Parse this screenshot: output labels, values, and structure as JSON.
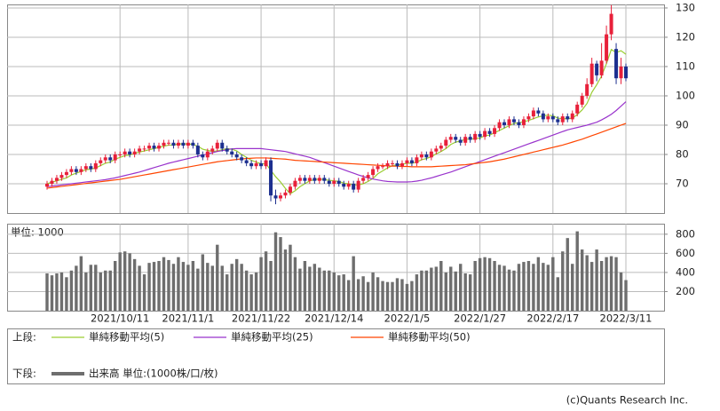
{
  "chart_data": [
    {
      "type": "candlestick",
      "up_color": "#e8203a",
      "down_color": "#1c2f8f",
      "legend_title": "上段:",
      "ylim": [
        60,
        131.2
      ],
      "yticks": [
        70,
        80,
        90,
        100,
        110,
        120,
        130
      ],
      "grid": true,
      "ohlc": [
        [
          69,
          71,
          68,
          70
        ],
        [
          70,
          72,
          69,
          71
        ],
        [
          71,
          73,
          70,
          72
        ],
        [
          72,
          74,
          71,
          73
        ],
        [
          73,
          75,
          72,
          74
        ],
        [
          74,
          76,
          73,
          75
        ],
        [
          75,
          76,
          73,
          74
        ],
        [
          74,
          76,
          73,
          75
        ],
        [
          75,
          77,
          74,
          76
        ],
        [
          76,
          77,
          74,
          75
        ],
        [
          75,
          78,
          74,
          77
        ],
        [
          77,
          79,
          76,
          78
        ],
        [
          78,
          80,
          77,
          79
        ],
        [
          79,
          80,
          77,
          78
        ],
        [
          78,
          81,
          77,
          80
        ],
        [
          80,
          81,
          79,
          80
        ],
        [
          80,
          82,
          79,
          81
        ],
        [
          81,
          82,
          79,
          80
        ],
        [
          80,
          82,
          79,
          81
        ],
        [
          81,
          83,
          80,
          82
        ],
        [
          82,
          83,
          81,
          82
        ],
        [
          82,
          84,
          81,
          83
        ],
        [
          83,
          84,
          81,
          82
        ],
        [
          82,
          84,
          81,
          83
        ],
        [
          83,
          85,
          82,
          84
        ],
        [
          84,
          85,
          83,
          84
        ],
        [
          84,
          85,
          82,
          83
        ],
        [
          83,
          85,
          82,
          84
        ],
        [
          84,
          85,
          82,
          83
        ],
        [
          83,
          85,
          82,
          84
        ],
        [
          84,
          85,
          82,
          83
        ],
        [
          83,
          84,
          79,
          80
        ],
        [
          80,
          81,
          78,
          79
        ],
        [
          79,
          82,
          78,
          81
        ],
        [
          81,
          83,
          80,
          82
        ],
        [
          82,
          85,
          81,
          84
        ],
        [
          84,
          85,
          81,
          82
        ],
        [
          82,
          83,
          80,
          81
        ],
        [
          81,
          82,
          79,
          80
        ],
        [
          80,
          81,
          78,
          79
        ],
        [
          79,
          80,
          77,
          78
        ],
        [
          78,
          79,
          76,
          77
        ],
        [
          77,
          78,
          75,
          76
        ],
        [
          76,
          78,
          75,
          77
        ],
        [
          77,
          78,
          75,
          76
        ],
        [
          76,
          79,
          75,
          78
        ],
        [
          78,
          79,
          64,
          66
        ],
        [
          66,
          68,
          63,
          65
        ],
        [
          65,
          67,
          64,
          66
        ],
        [
          66,
          68,
          65,
          67
        ],
        [
          67,
          70,
          66,
          69
        ],
        [
          69,
          72,
          68,
          71
        ],
        [
          71,
          73,
          70,
          72
        ],
        [
          72,
          73,
          70,
          71
        ],
        [
          71,
          73,
          70,
          72
        ],
        [
          72,
          73,
          70,
          71
        ],
        [
          71,
          73,
          70,
          72
        ],
        [
          72,
          73,
          70,
          71
        ],
        [
          71,
          72,
          69,
          70
        ],
        [
          70,
          72,
          69,
          71
        ],
        [
          71,
          72,
          69,
          70
        ],
        [
          70,
          71,
          68,
          69
        ],
        [
          69,
          71,
          68,
          70
        ],
        [
          70,
          71,
          67,
          68
        ],
        [
          68,
          72,
          67,
          71
        ],
        [
          71,
          73,
          70,
          72
        ],
        [
          72,
          74,
          71,
          73
        ],
        [
          73,
          76,
          72,
          75
        ],
        [
          75,
          77,
          74,
          76
        ],
        [
          76,
          77,
          75,
          76
        ],
        [
          76,
          78,
          75,
          77
        ],
        [
          77,
          78,
          76,
          77
        ],
        [
          77,
          78,
          75,
          76
        ],
        [
          76,
          78,
          75,
          77
        ],
        [
          77,
          79,
          76,
          78
        ],
        [
          78,
          79,
          76,
          77
        ],
        [
          77,
          80,
          76,
          79
        ],
        [
          79,
          81,
          78,
          80
        ],
        [
          80,
          81,
          78,
          79
        ],
        [
          79,
          82,
          78,
          81
        ],
        [
          81,
          83,
          80,
          82
        ],
        [
          82,
          84,
          81,
          83
        ],
        [
          83,
          86,
          82,
          85
        ],
        [
          85,
          87,
          84,
          86
        ],
        [
          86,
          87,
          84,
          85
        ],
        [
          85,
          86,
          83,
          84
        ],
        [
          84,
          87,
          83,
          86
        ],
        [
          86,
          87,
          84,
          85
        ],
        [
          85,
          88,
          84,
          87
        ],
        [
          87,
          88,
          85,
          86
        ],
        [
          86,
          89,
          85,
          88
        ],
        [
          88,
          89,
          86,
          87
        ],
        [
          87,
          90,
          86,
          89
        ],
        [
          89,
          92,
          88,
          91
        ],
        [
          91,
          92,
          89,
          90
        ],
        [
          90,
          93,
          89,
          92
        ],
        [
          92,
          93,
          90,
          91
        ],
        [
          91,
          92,
          89,
          90
        ],
        [
          90,
          93,
          89,
          92
        ],
        [
          92,
          94,
          91,
          93
        ],
        [
          93,
          96,
          92,
          95
        ],
        [
          95,
          96,
          93,
          94
        ],
        [
          94,
          95,
          91,
          92
        ],
        [
          92,
          94,
          91,
          93
        ],
        [
          93,
          94,
          91,
          92
        ],
        [
          92,
          93,
          90,
          91
        ],
        [
          91,
          94,
          90,
          93
        ],
        [
          93,
          94,
          91,
          92
        ],
        [
          92,
          95,
          91,
          94
        ],
        [
          94,
          98,
          93,
          97
        ],
        [
          97,
          101,
          96,
          100
        ],
        [
          100,
          106,
          99,
          104
        ],
        [
          104,
          113,
          103,
          111
        ],
        [
          111,
          112,
          105,
          107
        ],
        [
          107,
          118,
          106,
          112
        ],
        [
          112,
          124,
          111,
          121
        ],
        [
          121,
          131,
          119,
          128
        ],
        [
          116,
          118,
          104,
          106
        ],
        [
          106,
          113,
          104,
          110
        ],
        [
          110,
          111,
          105,
          106
        ]
      ],
      "series": [
        {
          "name": "単純移動平均(5)",
          "color": "#9acd32",
          "values": [
            70,
            70.5,
            71,
            71.5,
            72,
            73,
            73.6,
            74.2,
            74.8,
            75,
            75.4,
            76.2,
            77,
            77.4,
            78.4,
            79,
            79.6,
            79.8,
            80.4,
            80.8,
            81.2,
            81.6,
            82,
            82.4,
            82.8,
            83.2,
            83.2,
            83.6,
            83.6,
            83.6,
            83.4,
            82.8,
            81.8,
            81.4,
            81,
            81.2,
            81.6,
            82,
            81.8,
            81.2,
            80,
            79,
            78,
            77.4,
            76.8,
            76.8,
            74.6,
            72.4,
            70.6,
            68.4,
            66.6,
            67.6,
            69,
            70,
            71,
            71.4,
            71.6,
            71.4,
            71.2,
            71,
            70.8,
            70.2,
            70,
            69.6,
            69.6,
            70,
            70.8,
            71.8,
            73.4,
            74.4,
            75.4,
            76.2,
            76.4,
            76.6,
            77,
            77,
            77.4,
            78.2,
            78.6,
            79.2,
            80.2,
            81,
            82,
            83.4,
            84.2,
            84.6,
            85.2,
            85.2,
            85.4,
            85.6,
            86.4,
            86.6,
            87.4,
            88.2,
            89,
            89.8,
            90.6,
            90.8,
            91.2,
            91.6,
            92.2,
            92.8,
            93.2,
            93.4,
            93.2,
            92.4,
            92.2,
            92.2,
            92.4,
            93.6,
            95.2,
            97.4,
            101.2,
            103.8,
            106.8,
            111,
            115.8,
            114.8,
            115.4,
            114.2
          ]
        },
        {
          "name": "単純移動平均(25)",
          "color": "#9933cc",
          "values": [
            69,
            69.2,
            69.4,
            69.6,
            69.8,
            70,
            70.2,
            70.4,
            70.6,
            70.8,
            71,
            71.2,
            71.4,
            71.7,
            72,
            72.4,
            72.8,
            73.2,
            73.6,
            74,
            74.5,
            75,
            75.5,
            76,
            76.5,
            77,
            77.4,
            77.8,
            78.2,
            78.6,
            79,
            79.4,
            79.8,
            80.2,
            80.6,
            81,
            81.3,
            81.6,
            81.9,
            82,
            82,
            82,
            82,
            82,
            82,
            81.8,
            81.6,
            81.4,
            81.2,
            81,
            80.6,
            80.2,
            79.8,
            79.4,
            79,
            78.4,
            77.8,
            77.2,
            76.6,
            76,
            75.4,
            74.8,
            74.2,
            73.6,
            73,
            72.5,
            72,
            71.6,
            71.3,
            71,
            70.8,
            70.7,
            70.6,
            70.6,
            70.6,
            70.7,
            70.9,
            71.2,
            71.6,
            72,
            72.5,
            73,
            73.5,
            74,
            74.6,
            75.2,
            75.8,
            76.4,
            77,
            77.6,
            78.2,
            78.8,
            79.4,
            80,
            80.6,
            81.2,
            81.8,
            82.4,
            83,
            83.6,
            84.2,
            84.8,
            85.4,
            86,
            86.6,
            87.2,
            87.8,
            88.4,
            88.8,
            89.2,
            89.6,
            90,
            90.5,
            91,
            91.8,
            92.7,
            93.7,
            95,
            96.5,
            98
          ]
        },
        {
          "name": "単純移動平均(50)",
          "color": "#ff4500",
          "values": [
            68.5,
            68.7,
            68.9,
            69.1,
            69.3,
            69.5,
            69.7,
            69.9,
            70.1,
            70.3,
            70.5,
            70.7,
            70.9,
            71.1,
            71.3,
            71.5,
            71.8,
            72.1,
            72.4,
            72.7,
            73,
            73.3,
            73.6,
            73.9,
            74.2,
            74.5,
            74.8,
            75.1,
            75.4,
            75.7,
            76,
            76.3,
            76.6,
            76.9,
            77.2,
            77.5,
            77.7,
            77.9,
            78.1,
            78.3,
            78.5,
            78.6,
            78.7,
            78.8,
            78.8,
            78.8,
            78.7,
            78.6,
            78.5,
            78.4,
            78.2,
            78,
            77.9,
            77.8,
            77.7,
            77.6,
            77.5,
            77.4,
            77.3,
            77.2,
            77.1,
            77,
            76.9,
            76.8,
            76.7,
            76.6,
            76.5,
            76.4,
            76.3,
            76.2,
            76.1,
            76,
            76,
            75.9,
            75.9,
            75.8,
            75.8,
            75.8,
            75.8,
            75.8,
            75.9,
            76,
            76.1,
            76.2,
            76.3,
            76.4,
            76.5,
            76.7,
            76.9,
            77.1,
            77.3,
            77.5,
            77.8,
            78.1,
            78.4,
            78.8,
            79.2,
            79.6,
            80,
            80.4,
            80.8,
            81.2,
            81.6,
            82,
            82.4,
            82.8,
            83.2,
            83.7,
            84.2,
            84.7,
            85.2,
            85.8,
            86.4,
            87,
            87.6,
            88.2,
            88.8,
            89.4,
            90,
            90.6
          ]
        }
      ]
    },
    {
      "type": "bar",
      "name": "出来高 単位:(1000株/口/枚)",
      "legend_title": "下段:",
      "unit_label": "単位: 1000",
      "color": "#6e6e6e",
      "ylim": [
        0,
        910
      ],
      "yticks": [
        200,
        400,
        600,
        800
      ],
      "grid": true,
      "categories": [
        null,
        null,
        null,
        null,
        null,
        null,
        null,
        null,
        null,
        null,
        null,
        null,
        null,
        null,
        null,
        "2021/10/11",
        null,
        null,
        null,
        null,
        null,
        null,
        null,
        null,
        null,
        null,
        null,
        null,
        null,
        "2021/11/1",
        null,
        null,
        null,
        null,
        null,
        null,
        null,
        null,
        null,
        null,
        null,
        null,
        null,
        null,
        "2021/11/22",
        null,
        null,
        null,
        null,
        null,
        null,
        null,
        null,
        null,
        null,
        null,
        null,
        null,
        null,
        "2021/12/14",
        null,
        null,
        null,
        null,
        null,
        null,
        null,
        null,
        null,
        null,
        null,
        null,
        null,
        null,
        "2022/1/5",
        null,
        null,
        null,
        null,
        null,
        null,
        null,
        null,
        null,
        null,
        null,
        null,
        null,
        null,
        "2022/1/27",
        null,
        null,
        null,
        null,
        null,
        null,
        null,
        null,
        null,
        null,
        null,
        null,
        null,
        null,
        "2022/2/17",
        null,
        null,
        null,
        null,
        null,
        null,
        null,
        null,
        null,
        null,
        null,
        null,
        null,
        null,
        "2022/3/11"
      ],
      "values": [
        390,
        370,
        390,
        400,
        350,
        420,
        470,
        570,
        400,
        480,
        480,
        400,
        420,
        420,
        520,
        610,
        620,
        600,
        540,
        470,
        380,
        500,
        510,
        520,
        560,
        530,
        490,
        560,
        510,
        480,
        520,
        440,
        590,
        500,
        470,
        690,
        470,
        380,
        490,
        540,
        490,
        420,
        380,
        400,
        560,
        620,
        520,
        820,
        770,
        640,
        690,
        560,
        440,
        520,
        460,
        490,
        450,
        420,
        420,
        400,
        370,
        380,
        320,
        570,
        330,
        360,
        300,
        400,
        350,
        310,
        300,
        300,
        340,
        330,
        280,
        310,
        380,
        420,
        420,
        450,
        460,
        520,
        400,
        460,
        410,
        490,
        390,
        380,
        520,
        550,
        560,
        550,
        520,
        480,
        470,
        430,
        420,
        490,
        510,
        520,
        490,
        560,
        500,
        480,
        560,
        350,
        620,
        760,
        490,
        830,
        640,
        580,
        510,
        640,
        520,
        560,
        570,
        560,
        400,
        320
      ]
    }
  ],
  "credit": "(c)Quants Research Inc."
}
